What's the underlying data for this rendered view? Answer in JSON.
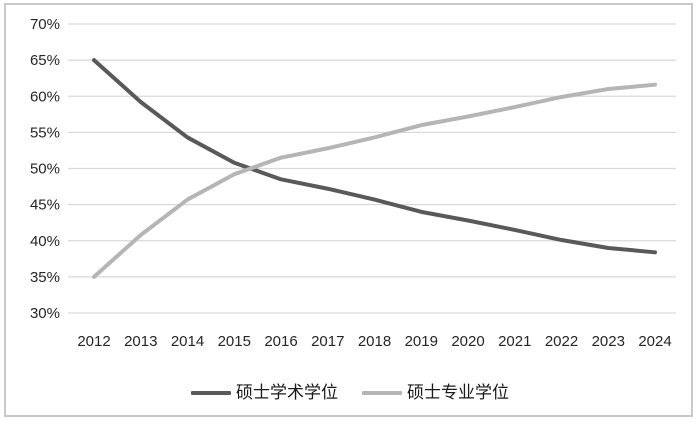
{
  "chart_data": {
    "type": "line",
    "title": "",
    "xlabel": "",
    "ylabel": "",
    "categories": [
      "2012",
      "2013",
      "2014",
      "2015",
      "2016",
      "2017",
      "2018",
      "2019",
      "2020",
      "2021",
      "2022",
      "2023",
      "2024"
    ],
    "series": [
      {
        "name": "硕士学术学位",
        "color": "#595959",
        "values": [
          65.0,
          59.2,
          54.3,
          50.8,
          48.5,
          47.2,
          45.7,
          44.0,
          42.8,
          41.5,
          40.1,
          39.0,
          38.4
        ]
      },
      {
        "name": "硕士专业学位",
        "color": "#b5b5b5",
        "values": [
          35.0,
          40.8,
          45.7,
          49.2,
          51.5,
          52.8,
          54.3,
          56.0,
          57.2,
          58.5,
          59.9,
          61.0,
          61.6
        ]
      }
    ],
    "ylim": [
      30,
      70
    ],
    "ytick_step": 5,
    "ytick_suffix": "%",
    "grid": true,
    "gridline_color": "#d9d9d9",
    "axis_text_color": "#262626",
    "legend_position": "bottom",
    "frame_border_color": "#c9c9c9",
    "background": "#ffffff"
  }
}
